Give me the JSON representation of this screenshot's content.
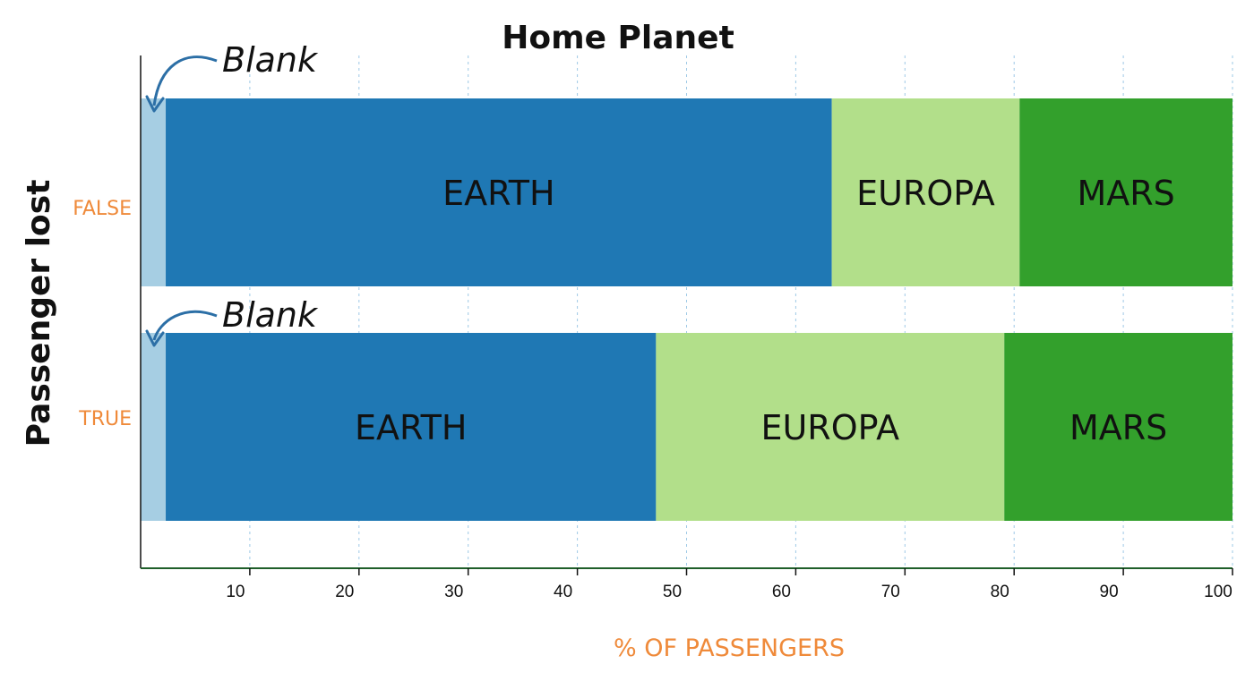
{
  "chart_data": {
    "type": "bar",
    "orientation": "horizontal",
    "stacked": true,
    "title": "Home Planet",
    "xlabel": "% OF PASSENGERS",
    "ylabel": "Passenger lost",
    "xlim": [
      0,
      100
    ],
    "x_ticks": [
      10,
      20,
      30,
      40,
      50,
      60,
      70,
      80,
      90,
      100
    ],
    "grid": true,
    "categories": [
      "FALSE",
      "TRUE"
    ],
    "segment_labels": [
      "",
      "EARTH",
      "EUROPA",
      "MARS"
    ],
    "series": [
      {
        "values": [
          2.3,
          2.3
        ],
        "color": "#a6cee3"
      },
      {
        "values": [
          61.0,
          44.9
        ],
        "color": "#1f78b4"
      },
      {
        "values": [
          17.2,
          31.9
        ],
        "color": "#b2df8a"
      },
      {
        "values": [
          19.5,
          20.9
        ],
        "color": "#33a02c"
      }
    ],
    "annotations": [
      "Blank",
      "Blank"
    ]
  }
}
